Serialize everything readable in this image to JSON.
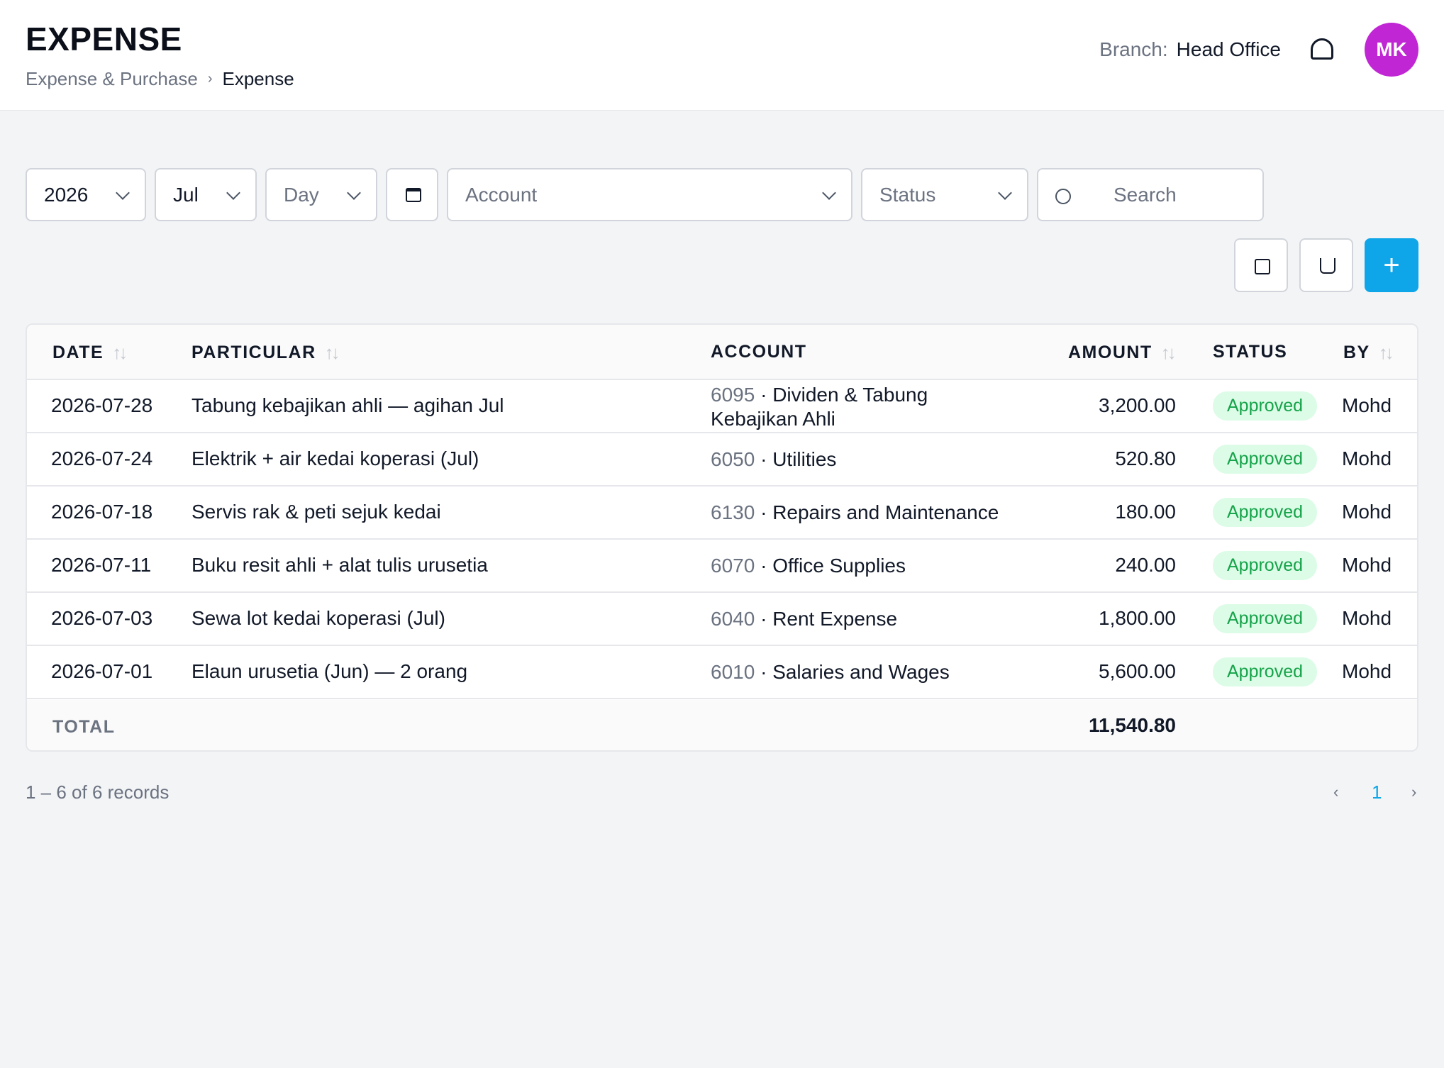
{
  "header": {
    "title": "EXPENSE",
    "breadcrumb": {
      "parent": "Expense & Purchase",
      "separator": "›",
      "current": "Expense"
    },
    "branch_label": "Branch:",
    "branch_value": "Head Office",
    "avatar_initials": "MK",
    "avatar_color": "#c026d3"
  },
  "filters": {
    "year": "2026",
    "month": "Jul",
    "day_placeholder": "Day",
    "account_placeholder": "Account",
    "status_placeholder": "Status",
    "search_placeholder": "Search"
  },
  "actions": {
    "add_label": "+",
    "primary_color": "#0ea5e9"
  },
  "table": {
    "columns": {
      "date": "DATE",
      "particular": "PARTICULAR",
      "account": "ACCOUNT",
      "amount": "AMOUNT",
      "status": "STATUS",
      "by": "BY"
    },
    "sort_glyph": "↑↓",
    "rows": [
      {
        "date": "2026-07-28",
        "particular": "Tabung kebajikan ahli — agihan Jul",
        "account_code": "6095",
        "account_name": "Dividen & Tabung Kebajikan Ahli",
        "amount": "3,200.00",
        "status": "Approved",
        "by": "Mohd"
      },
      {
        "date": "2026-07-24",
        "particular": "Elektrik + air kedai koperasi (Jul)",
        "account_code": "6050",
        "account_name": "Utilities",
        "amount": "520.80",
        "status": "Approved",
        "by": "Mohd"
      },
      {
        "date": "2026-07-18",
        "particular": "Servis rak & peti sejuk kedai",
        "account_code": "6130",
        "account_name": "Repairs and Maintenance",
        "amount": "180.00",
        "status": "Approved",
        "by": "Mohd"
      },
      {
        "date": "2026-07-11",
        "particular": "Buku resit ahli + alat tulis urusetia",
        "account_code": "6070",
        "account_name": "Office Supplies",
        "amount": "240.00",
        "status": "Approved",
        "by": "Mohd"
      },
      {
        "date": "2026-07-03",
        "particular": "Sewa lot kedai koperasi (Jul)",
        "account_code": "6040",
        "account_name": "Rent Expense",
        "amount": "1,800.00",
        "status": "Approved",
        "by": "Mohd"
      },
      {
        "date": "2026-07-01",
        "particular": "Elaun urusetia (Jun) — 2 orang",
        "account_code": "6010",
        "account_name": "Salaries and Wages",
        "amount": "5,600.00",
        "status": "Approved",
        "by": "Mohd"
      }
    ],
    "total_label": "TOTAL",
    "total_amount": "11,540.80",
    "status_color": "#16a34a"
  },
  "pagination": {
    "records_text": "1 – 6 of 6 records",
    "prev": "‹",
    "current_page": "1",
    "next": "›"
  }
}
